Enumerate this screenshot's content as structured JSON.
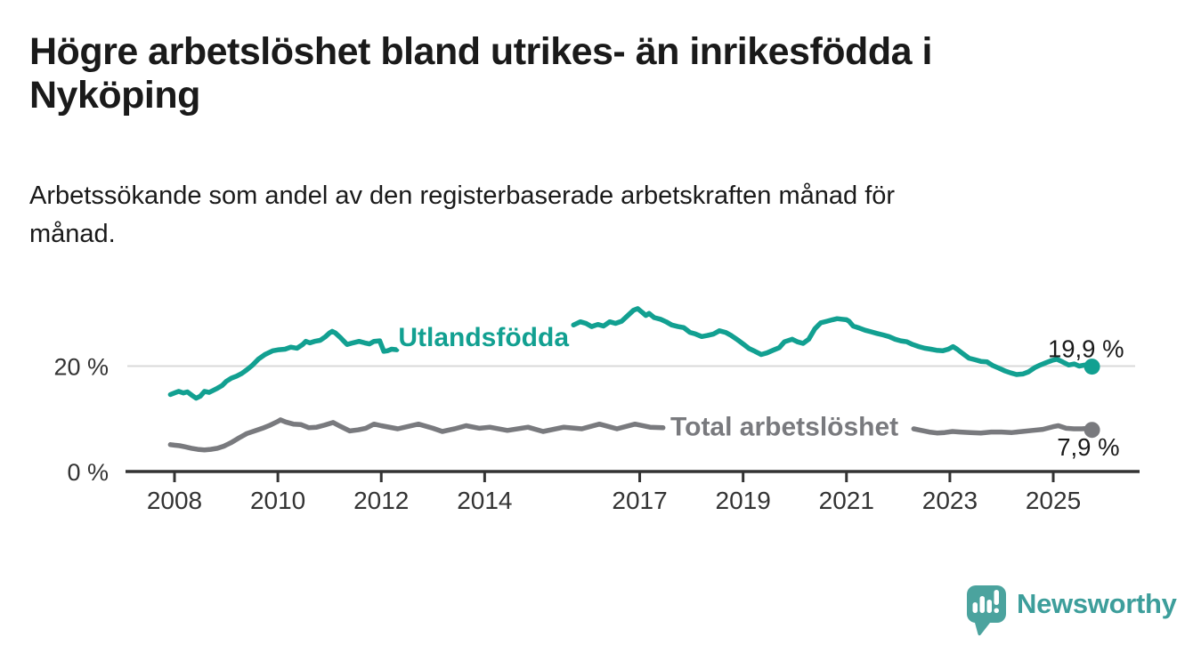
{
  "header": {
    "title_lines": [
      "Högre arbetslöshet bland utrikes- än inrikesfödda i",
      "Nyköping"
    ],
    "subtitle_lines": [
      "Arbetssökande som andel av den registerbaserade arbetskraften månad för",
      "månad."
    ]
  },
  "colors": {
    "title_text": "#1a1a1a",
    "axis": "#333333",
    "gridline": "#d9d9d9",
    "value_label_text": "#1a1a1a"
  },
  "branding": {
    "logo_text": "Newsworthy",
    "logo_text_color": "#3D9E9B",
    "logo_icon_color": "#4BA39E",
    "logo_icon": "speech-bubble-bar-chart-icon"
  },
  "chart_data": {
    "type": "line",
    "title": "Högre arbetslöshet bland utrikes- än inrikesfödda i Nyköping",
    "subtitle": "Arbetssökande som andel av den registerbaserade arbetskraften månad för månad.",
    "unit": "%",
    "grid": "horizontal-only",
    "legend_position": "inline-on-line",
    "x_axis": {
      "range": [
        2007.9,
        2026.1
      ],
      "ticks": [
        {
          "year": 2008,
          "label": "2008"
        },
        {
          "year": 2010,
          "label": "2010"
        },
        {
          "year": 2012,
          "label": "2012"
        },
        {
          "year": 2014,
          "label": "2014"
        },
        {
          "year": 2017,
          "label": "2017"
        },
        {
          "year": 2019,
          "label": "2019"
        },
        {
          "year": 2021,
          "label": "2021"
        },
        {
          "year": 2023,
          "label": "2023"
        },
        {
          "year": 2025,
          "label": "2025"
        }
      ]
    },
    "y_axis": {
      "range": [
        0,
        32
      ],
      "ticks": [
        {
          "value": 20,
          "label": "20 %",
          "gridline": true
        },
        {
          "value": 0,
          "label": "0 %",
          "gridline": false
        }
      ]
    },
    "series": [
      {
        "id": "utlandsfodda",
        "name": "Utlandsfödda",
        "color": "#12A091",
        "end_label": "19,9 %",
        "end_value": 19.9,
        "end_label_position": "above",
        "label_anchor": {
          "year": 2013.98,
          "value": 23.8
        },
        "segments": [
          [
            [
              2007.92,
              14.6
            ],
            [
              2008.0,
              14.9
            ],
            [
              2008.08,
              15.2
            ],
            [
              2008.17,
              14.9
            ],
            [
              2008.25,
              15.1
            ],
            [
              2008.33,
              14.5
            ],
            [
              2008.42,
              13.9
            ],
            [
              2008.5,
              14.3
            ],
            [
              2008.58,
              15.2
            ],
            [
              2008.67,
              15.0
            ],
            [
              2008.75,
              15.4
            ],
            [
              2008.83,
              15.8
            ],
            [
              2008.92,
              16.3
            ],
            [
              2009.0,
              17.1
            ],
            [
              2009.1,
              17.7
            ],
            [
              2009.2,
              18.1
            ],
            [
              2009.3,
              18.6
            ],
            [
              2009.4,
              19.3
            ],
            [
              2009.5,
              20.1
            ],
            [
              2009.62,
              21.3
            ],
            [
              2009.75,
              22.2
            ],
            [
              2009.9,
              22.9
            ],
            [
              2010.02,
              23.1
            ],
            [
              2010.14,
              23.2
            ],
            [
              2010.25,
              23.6
            ],
            [
              2010.37,
              23.4
            ],
            [
              2010.48,
              24.1
            ],
            [
              2010.54,
              24.7
            ],
            [
              2010.62,
              24.4
            ],
            [
              2010.71,
              24.7
            ],
            [
              2010.82,
              24.9
            ],
            [
              2010.91,
              25.5
            ],
            [
              2011.0,
              26.3
            ],
            [
              2011.05,
              26.6
            ],
            [
              2011.11,
              26.3
            ],
            [
              2011.2,
              25.5
            ],
            [
              2011.28,
              24.7
            ],
            [
              2011.34,
              24.1
            ],
            [
              2011.45,
              24.4
            ],
            [
              2011.57,
              24.7
            ],
            [
              2011.68,
              24.4
            ],
            [
              2011.77,
              24.2
            ],
            [
              2011.86,
              24.7
            ],
            [
              2011.97,
              24.8
            ],
            [
              2012.05,
              22.8
            ],
            [
              2012.12,
              22.9
            ],
            [
              2012.2,
              23.2
            ],
            [
              2012.3,
              23.1
            ]
          ],
          [
            [
              2015.72,
              27.8
            ],
            [
              2015.85,
              28.4
            ],
            [
              2015.96,
              28.1
            ],
            [
              2016.07,
              27.5
            ],
            [
              2016.19,
              27.9
            ],
            [
              2016.3,
              27.6
            ],
            [
              2016.42,
              28.4
            ],
            [
              2016.53,
              28.1
            ],
            [
              2016.65,
              28.5
            ],
            [
              2016.76,
              29.5
            ],
            [
              2016.88,
              30.6
            ],
            [
              2016.96,
              30.9
            ],
            [
              2017.05,
              30.2
            ],
            [
              2017.12,
              29.6
            ],
            [
              2017.18,
              30.0
            ],
            [
              2017.28,
              29.2
            ],
            [
              2017.4,
              28.9
            ],
            [
              2017.51,
              28.4
            ],
            [
              2017.62,
              27.8
            ],
            [
              2017.74,
              27.5
            ],
            [
              2017.85,
              27.3
            ],
            [
              2017.97,
              26.4
            ],
            [
              2018.08,
              26.1
            ],
            [
              2018.2,
              25.6
            ],
            [
              2018.31,
              25.8
            ],
            [
              2018.43,
              26.1
            ],
            [
              2018.54,
              26.7
            ],
            [
              2018.66,
              26.4
            ],
            [
              2018.77,
              25.8
            ],
            [
              2018.89,
              25.0
            ],
            [
              2019.0,
              24.2
            ],
            [
              2019.12,
              23.3
            ],
            [
              2019.23,
              22.8
            ],
            [
              2019.35,
              22.2
            ],
            [
              2019.46,
              22.5
            ],
            [
              2019.58,
              23.0
            ],
            [
              2019.7,
              23.5
            ],
            [
              2019.8,
              24.6
            ],
            [
              2019.95,
              25.1
            ],
            [
              2020.05,
              24.6
            ],
            [
              2020.16,
              24.3
            ],
            [
              2020.27,
              25.1
            ],
            [
              2020.39,
              27.1
            ],
            [
              2020.5,
              28.2
            ],
            [
              2020.62,
              28.5
            ],
            [
              2020.73,
              28.8
            ],
            [
              2020.82,
              29.0
            ],
            [
              2020.91,
              28.9
            ],
            [
              2021.0,
              28.8
            ],
            [
              2021.05,
              28.5
            ],
            [
              2021.13,
              27.6
            ],
            [
              2021.25,
              27.2
            ],
            [
              2021.36,
              26.8
            ],
            [
              2021.48,
              26.5
            ],
            [
              2021.59,
              26.2
            ],
            [
              2021.71,
              25.9
            ],
            [
              2021.82,
              25.6
            ],
            [
              2021.94,
              25.1
            ],
            [
              2022.05,
              24.8
            ],
            [
              2022.17,
              24.6
            ],
            [
              2022.28,
              24.1
            ],
            [
              2022.4,
              23.7
            ],
            [
              2022.51,
              23.4
            ],
            [
              2022.63,
              23.2
            ],
            [
              2022.74,
              23.0
            ],
            [
              2022.86,
              22.9
            ],
            [
              2022.97,
              23.2
            ],
            [
              2023.06,
              23.7
            ],
            [
              2023.14,
              23.2
            ],
            [
              2023.26,
              22.3
            ],
            [
              2023.37,
              21.5
            ],
            [
              2023.49,
              21.2
            ],
            [
              2023.6,
              20.9
            ],
            [
              2023.72,
              20.8
            ],
            [
              2023.83,
              20.1
            ],
            [
              2023.95,
              19.6
            ],
            [
              2024.06,
              19.1
            ],
            [
              2024.18,
              18.7
            ],
            [
              2024.29,
              18.4
            ],
            [
              2024.41,
              18.5
            ],
            [
              2024.52,
              18.9
            ],
            [
              2024.64,
              19.7
            ],
            [
              2024.75,
              20.2
            ],
            [
              2024.87,
              20.7
            ],
            [
              2024.98,
              21.1
            ],
            [
              2025.07,
              21.3
            ],
            [
              2025.18,
              20.8
            ],
            [
              2025.3,
              20.2
            ],
            [
              2025.41,
              20.4
            ],
            [
              2025.5,
              20.0
            ],
            [
              2025.61,
              20.2
            ],
            [
              2025.72,
              20.1
            ],
            [
              2025.75,
              19.9
            ]
          ]
        ]
      },
      {
        "id": "total",
        "name": "Total arbetslöshet",
        "color": "#797A7E",
        "end_label": "7,9 %",
        "end_value": 7.9,
        "end_label_position": "below",
        "label_anchor": {
          "year": 2019.8,
          "value": 6.85
        },
        "segments": [
          [
            [
              2007.92,
              5.1
            ],
            [
              2008.0,
              5.0
            ],
            [
              2008.1,
              4.9
            ],
            [
              2008.2,
              4.7
            ],
            [
              2008.33,
              4.4
            ],
            [
              2008.45,
              4.2
            ],
            [
              2008.58,
              4.1
            ],
            [
              2008.7,
              4.2
            ],
            [
              2008.83,
              4.4
            ],
            [
              2008.95,
              4.8
            ],
            [
              2009.1,
              5.5
            ],
            [
              2009.25,
              6.4
            ],
            [
              2009.4,
              7.2
            ],
            [
              2009.55,
              7.7
            ],
            [
              2009.7,
              8.2
            ],
            [
              2009.85,
              8.8
            ],
            [
              2010.0,
              9.5
            ],
            [
              2010.05,
              9.8
            ],
            [
              2010.15,
              9.4
            ],
            [
              2010.3,
              9.0
            ],
            [
              2010.45,
              8.9
            ],
            [
              2010.6,
              8.3
            ],
            [
              2010.75,
              8.4
            ],
            [
              2010.9,
              8.8
            ],
            [
              2011.07,
              9.3
            ],
            [
              2011.2,
              8.6
            ],
            [
              2011.39,
              7.7
            ],
            [
              2011.55,
              7.9
            ],
            [
              2011.7,
              8.2
            ],
            [
              2011.86,
              9.0
            ],
            [
              2012.0,
              8.7
            ],
            [
              2012.32,
              8.1
            ],
            [
              2012.72,
              9.0
            ],
            [
              2013.0,
              8.2
            ],
            [
              2013.18,
              7.6
            ],
            [
              2013.42,
              8.1
            ],
            [
              2013.64,
              8.7
            ],
            [
              2013.9,
              8.2
            ],
            [
              2014.1,
              8.4
            ],
            [
              2014.44,
              7.8
            ],
            [
              2014.84,
              8.4
            ],
            [
              2015.13,
              7.6
            ],
            [
              2015.53,
              8.4
            ],
            [
              2015.88,
              8.1
            ],
            [
              2016.22,
              9.0
            ],
            [
              2016.56,
              8.1
            ],
            [
              2016.91,
              9.0
            ],
            [
              2017.2,
              8.4
            ],
            [
              2017.45,
              8.3
            ]
          ],
          [
            [
              2022.3,
              8.1
            ],
            [
              2022.45,
              7.8
            ],
            [
              2022.6,
              7.5
            ],
            [
              2022.75,
              7.3
            ],
            [
              2022.9,
              7.4
            ],
            [
              2023.05,
              7.6
            ],
            [
              2023.2,
              7.5
            ],
            [
              2023.4,
              7.4
            ],
            [
              2023.6,
              7.3
            ],
            [
              2023.8,
              7.5
            ],
            [
              2024.0,
              7.5
            ],
            [
              2024.2,
              7.4
            ],
            [
              2024.4,
              7.6
            ],
            [
              2024.6,
              7.8
            ],
            [
              2024.8,
              8.0
            ],
            [
              2025.0,
              8.5
            ],
            [
              2025.1,
              8.7
            ],
            [
              2025.25,
              8.2
            ],
            [
              2025.4,
              8.1
            ],
            [
              2025.55,
              8.1
            ],
            [
              2025.7,
              8.2
            ],
            [
              2025.75,
              7.9
            ]
          ]
        ]
      }
    ]
  }
}
